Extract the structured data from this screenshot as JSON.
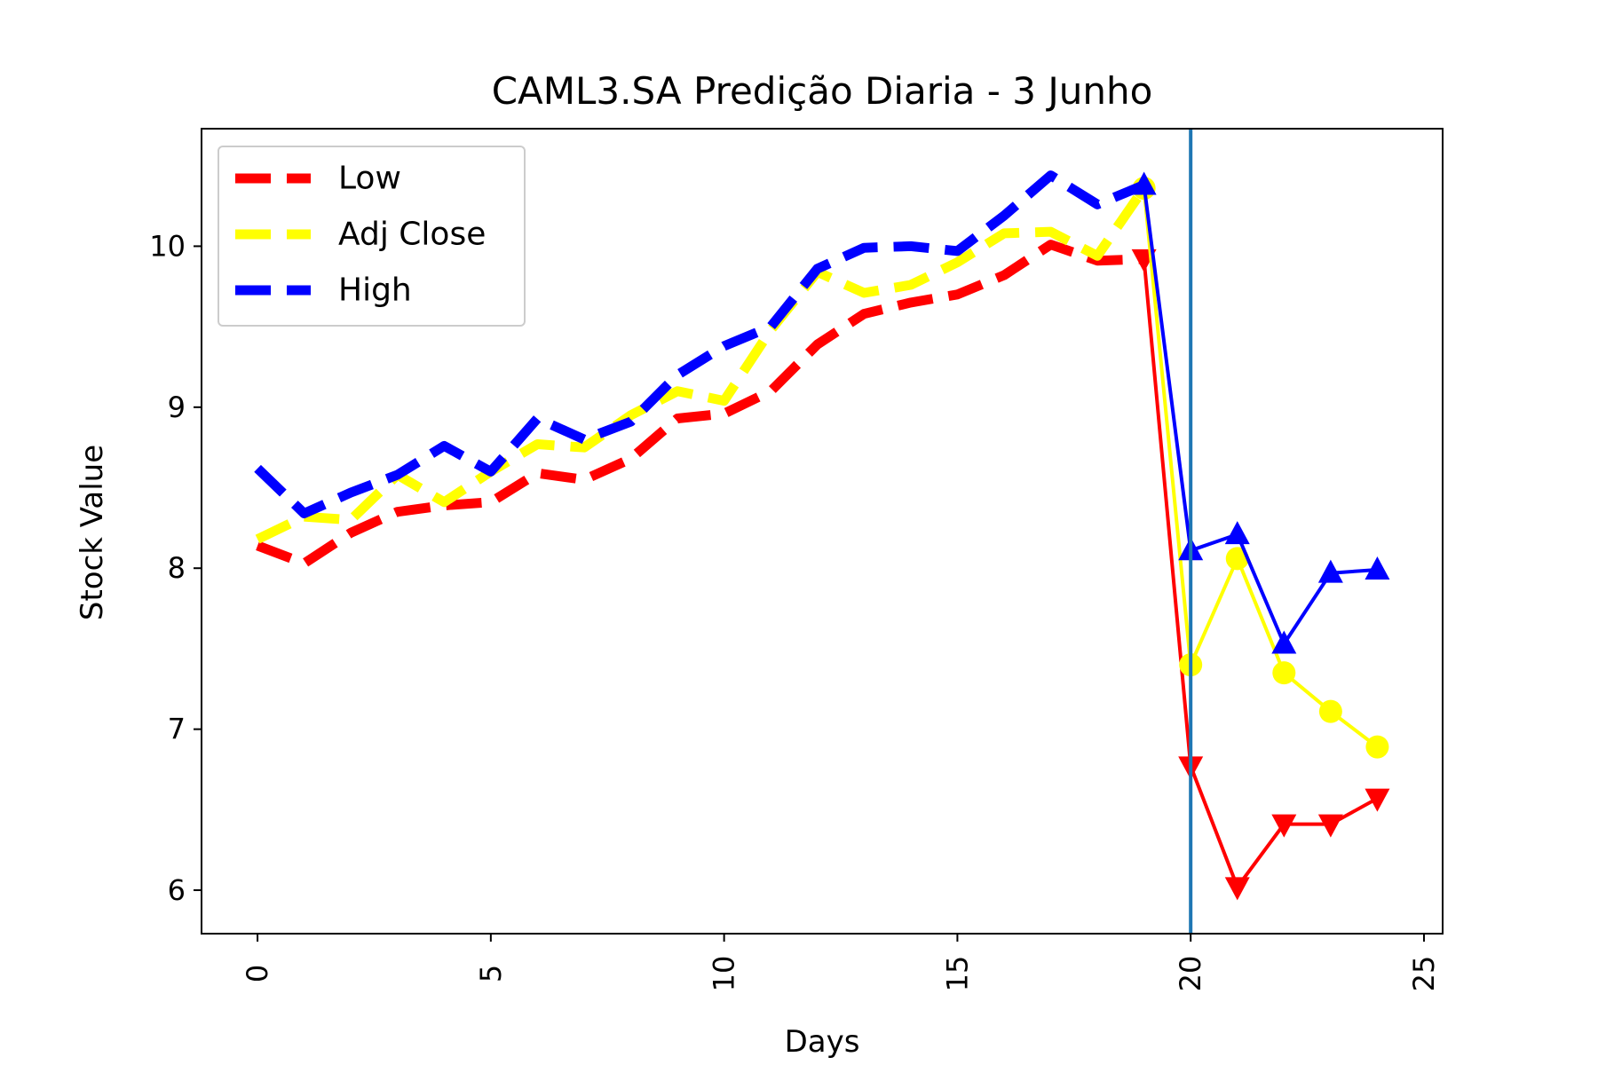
{
  "chart_data": {
    "type": "line",
    "title": "CAML3.SA Predição Diaria - 3 Junho",
    "xlabel": "Days",
    "ylabel": "Stock Value",
    "xlim": [
      -1.2,
      25.4
    ],
    "ylim": [
      5.73,
      10.73
    ],
    "xticks": [
      0,
      5,
      10,
      15,
      20,
      25
    ],
    "yticks": [
      6,
      7,
      8,
      9,
      10
    ],
    "xtick_labels": [
      "0",
      "5",
      "10",
      "15",
      "20",
      "25"
    ],
    "ytick_labels": [
      "6",
      "7",
      "8",
      "9",
      "10"
    ],
    "legend_position": "upper-left",
    "vline_x": 20,
    "vline_color": "#1f77b4",
    "series": [
      {
        "name": "Low",
        "color": "#ff0000",
        "marker": "triangle-down",
        "history_x": [
          0,
          1,
          2,
          3,
          4,
          5,
          6,
          7,
          8,
          9,
          10,
          11,
          12,
          13,
          14,
          15,
          16,
          17,
          18,
          19
        ],
        "history_y": [
          8.14,
          8.03,
          8.22,
          8.35,
          8.39,
          8.41,
          8.59,
          8.55,
          8.68,
          8.93,
          8.96,
          9.1,
          9.39,
          9.58,
          9.65,
          9.7,
          9.82,
          10.01,
          9.91,
          9.92
        ],
        "prediction_x": [
          19,
          20,
          21,
          22,
          23,
          24
        ],
        "prediction_y": [
          9.92,
          6.77,
          6.02,
          6.41,
          6.41,
          6.57
        ]
      },
      {
        "name": "Adj Close",
        "color": "#ffff00",
        "marker": "circle",
        "history_x": [
          0,
          1,
          2,
          3,
          4,
          5,
          6,
          7,
          8,
          9,
          10,
          11,
          12,
          13,
          14,
          15,
          16,
          17,
          18,
          19
        ],
        "history_y": [
          8.18,
          8.32,
          8.3,
          8.58,
          8.41,
          8.6,
          8.77,
          8.75,
          8.95,
          9.1,
          9.04,
          9.48,
          9.84,
          9.71,
          9.76,
          9.9,
          10.08,
          10.09,
          9.94,
          10.36
        ],
        "prediction_x": [
          19,
          20,
          21,
          22,
          23,
          24
        ],
        "prediction_y": [
          10.36,
          7.4,
          8.06,
          7.35,
          7.11,
          6.89
        ]
      },
      {
        "name": "High",
        "color": "#0000ff",
        "marker": "triangle-up",
        "history_x": [
          0,
          1,
          2,
          3,
          4,
          5,
          6,
          7,
          8,
          9,
          10,
          11,
          12,
          13,
          14,
          15,
          16,
          17,
          18,
          19
        ],
        "history_y": [
          8.62,
          8.34,
          8.47,
          8.58,
          8.76,
          8.6,
          8.93,
          8.8,
          8.91,
          9.2,
          9.38,
          9.5,
          9.86,
          9.99,
          10.0,
          9.97,
          10.19,
          10.44,
          10.26,
          10.38
        ],
        "prediction_x": [
          19,
          20,
          21,
          22,
          23,
          24
        ],
        "prediction_y": [
          10.38,
          8.11,
          8.21,
          7.53,
          7.97,
          7.99
        ]
      }
    ]
  }
}
